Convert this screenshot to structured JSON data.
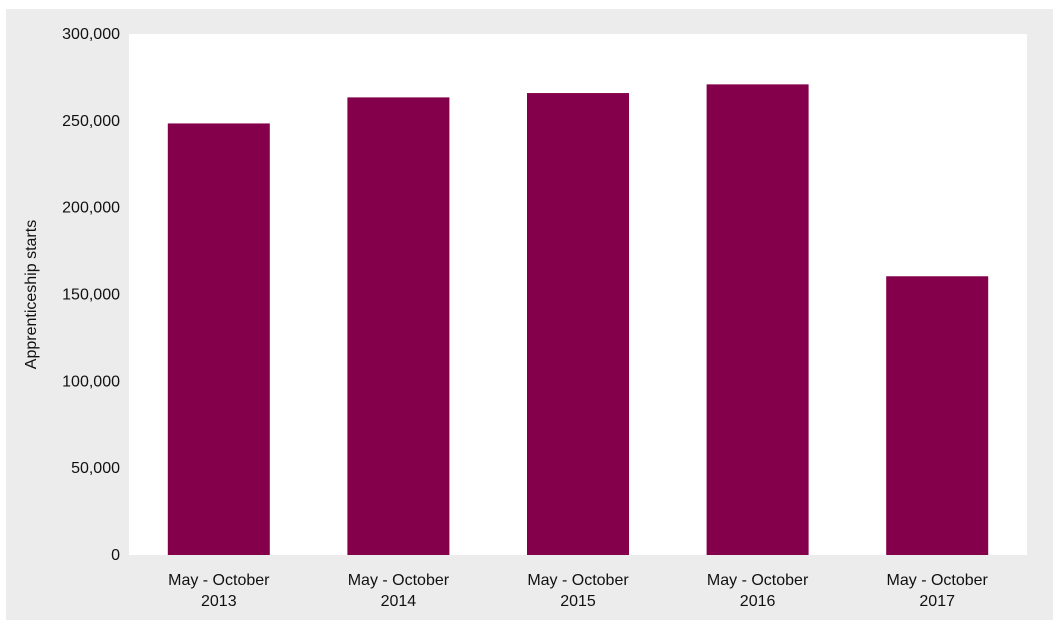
{
  "chart_data": {
    "type": "bar",
    "title": "",
    "xlabel": "",
    "ylabel": "Apprenticeship starts",
    "categories": [
      [
        "May - October",
        "2013"
      ],
      [
        "May - October",
        "2014"
      ],
      [
        "May - October",
        "2015"
      ],
      [
        "May - October",
        "2016"
      ],
      [
        "May - October",
        "2017"
      ]
    ],
    "values": [
      248500,
      263500,
      266000,
      271000,
      160500
    ],
    "ylim": [
      0,
      300000
    ],
    "yticks": [
      0,
      50000,
      100000,
      150000,
      200000,
      250000,
      300000
    ],
    "ytick_labels": [
      "0",
      "50,000",
      "100,000",
      "150,000",
      "200,000",
      "250,000",
      "300,000"
    ],
    "grid": false,
    "legend": "none",
    "bar_color": "#85004b",
    "plot_background": "#ffffff",
    "frame_background": "#ececec"
  }
}
